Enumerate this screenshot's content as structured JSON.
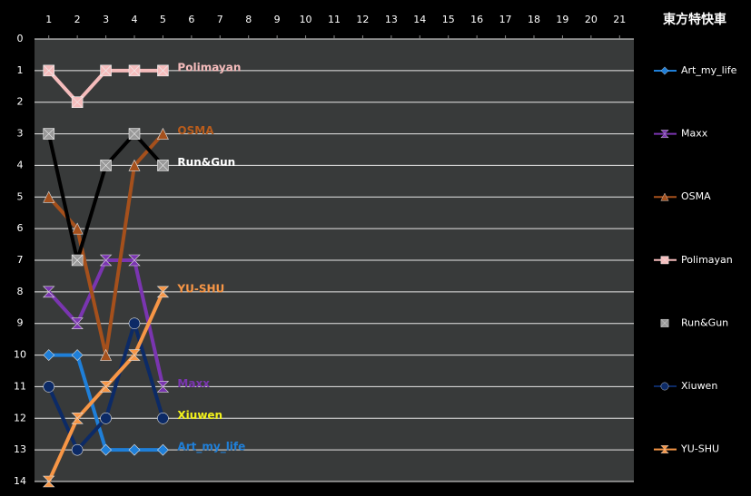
{
  "chart_data": {
    "type": "line",
    "legend_title": "東方特快車",
    "x": [
      1,
      2,
      3,
      4,
      5
    ],
    "xlim": [
      0.5,
      21.5
    ],
    "xticks": [
      1,
      2,
      3,
      4,
      5,
      6,
      7,
      8,
      9,
      10,
      11,
      12,
      13,
      14,
      15,
      16,
      17,
      18,
      19,
      20,
      21
    ],
    "ylim": [
      14,
      0
    ],
    "yticks": [
      0,
      1,
      2,
      3,
      4,
      5,
      6,
      7,
      8,
      9,
      10,
      11,
      12,
      13,
      14
    ],
    "grid": true,
    "legend": "right",
    "end_labels": true,
    "series": [
      {
        "name": "Art_my_life",
        "color": "#1f7fd8",
        "label_color": "#1f7fd8",
        "marker": "diamond",
        "values": [
          10,
          10,
          13,
          13,
          13
        ]
      },
      {
        "name": "Maxx",
        "color": "#7a35b0",
        "label_color": "#7a35b0",
        "marker": "bowtie",
        "values": [
          8,
          9,
          7,
          7,
          11
        ]
      },
      {
        "name": "OSMA",
        "color": "#a5501c",
        "label_color": "#b85c1c",
        "marker": "triangle",
        "values": [
          5,
          6,
          10,
          4,
          3
        ]
      },
      {
        "name": "Polimayan",
        "color": "#f5bcbc",
        "label_color": "#f5bcbc",
        "marker": "xsquare",
        "values": [
          1,
          2,
          1,
          1,
          1
        ]
      },
      {
        "name": "Run&Gun",
        "color": "#000000",
        "label_color": "#ffffff",
        "marker": "xsquare",
        "values": [
          3,
          7,
          4,
          3,
          4
        ]
      },
      {
        "name": "Xiuwen",
        "color": "#0c2a66",
        "label_color": "#f2f21a",
        "marker": "circle",
        "values": [
          11,
          13,
          12,
          9,
          12
        ]
      },
      {
        "name": "YU-SHU",
        "color": "#f79646",
        "label_color": "#f79646",
        "marker": "bowtie",
        "values": [
          14,
          12,
          11,
          10,
          8
        ]
      }
    ]
  }
}
